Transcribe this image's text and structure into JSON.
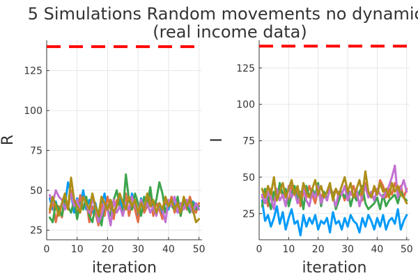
{
  "figure": {
    "title_line1": "5 Simulations Random movements no dynamics",
    "title_line2": "(real income data)"
  },
  "colors": {
    "series": [
      "#009af9",
      "#e26f46",
      "#3da44d",
      "#c271d2",
      "#ac8e18"
    ],
    "reference": "#ff0000"
  },
  "chart_data": [
    {
      "type": "line",
      "xlabel": "iteration",
      "ylabel": "R",
      "xlim": [
        0,
        51
      ],
      "ylim": [
        19,
        144
      ],
      "xticks": [
        0,
        10,
        20,
        30,
        40,
        50
      ],
      "yticks": [
        25,
        50,
        75,
        100,
        125
      ],
      "grid": true,
      "legend": "none",
      "x": [
        1,
        2,
        3,
        4,
        5,
        6,
        7,
        8,
        9,
        10,
        11,
        12,
        13,
        14,
        15,
        16,
        17,
        18,
        19,
        20,
        21,
        22,
        23,
        24,
        25,
        26,
        27,
        28,
        29,
        30,
        31,
        32,
        33,
        34,
        35,
        36,
        37,
        38,
        39,
        40,
        41,
        42,
        43,
        44,
        45,
        46,
        47,
        48,
        49,
        50
      ],
      "reference_line": 140,
      "series": [
        {
          "values": [
            45,
            38,
            43,
            35,
            42,
            40,
            55,
            48,
            36,
            45,
            41,
            50,
            38,
            44,
            36,
            42,
            33,
            40,
            48,
            38,
            44,
            35,
            40,
            46,
            38,
            42,
            36,
            48,
            40,
            34,
            45,
            38,
            43,
            50,
            36,
            42,
            40,
            35,
            44,
            38,
            46,
            40,
            36,
            42,
            39,
            44,
            37,
            43,
            40,
            38
          ]
        },
        {
          "values": [
            36,
            44,
            30,
            40,
            33,
            45,
            38,
            50,
            42,
            35,
            47,
            38,
            44,
            30,
            40,
            36,
            28,
            42,
            34,
            46,
            38,
            32,
            44,
            40,
            36,
            48,
            34,
            42,
            38,
            30,
            44,
            36,
            40,
            46,
            34,
            42,
            38,
            32,
            44,
            40,
            46,
            36,
            42,
            34,
            44,
            38,
            46,
            40,
            36,
            42
          ]
        },
        {
          "values": [
            33,
            30,
            42,
            38,
            34,
            46,
            40,
            36,
            44,
            32,
            42,
            38,
            46,
            34,
            30,
            40,
            36,
            28,
            42,
            38,
            34,
            44,
            50,
            40,
            36,
            60,
            44,
            38,
            48,
            42,
            34,
            46,
            40,
            52,
            38,
            44,
            55,
            48,
            36,
            42,
            40,
            38,
            46,
            34,
            44,
            40,
            36,
            42,
            38,
            40
          ]
        },
        {
          "values": [
            47,
            42,
            50,
            46,
            44,
            38,
            42,
            48,
            40,
            44,
            38,
            46,
            42,
            36,
            44,
            40,
            30,
            34,
            42,
            38,
            28,
            44,
            36,
            40,
            34,
            42,
            38,
            46,
            40,
            36,
            44,
            38,
            42,
            36,
            40,
            34,
            42,
            38,
            30,
            44,
            40,
            46,
            36,
            42,
            38,
            44,
            40,
            36,
            42,
            38
          ]
        },
        {
          "values": [
            38,
            46,
            40,
            34,
            42,
            48,
            38,
            58,
            44,
            40,
            36,
            46,
            42,
            38,
            48,
            40,
            34,
            46,
            42,
            38,
            44,
            36,
            40,
            48,
            42,
            38,
            46,
            40,
            44,
            36,
            42,
            38,
            48,
            40,
            44,
            36,
            42,
            38,
            46,
            40,
            44,
            38,
            42,
            36,
            46,
            40,
            44,
            38,
            30,
            32
          ]
        }
      ]
    },
    {
      "type": "line",
      "xlabel": "iteration",
      "ylabel": "I",
      "xlim": [
        0,
        51
      ],
      "ylim": [
        7,
        144
      ],
      "xticks": [
        0,
        10,
        20,
        30,
        40,
        50
      ],
      "yticks": [
        25,
        50,
        75,
        100,
        125
      ],
      "grid": true,
      "legend": "none",
      "x": [
        1,
        2,
        3,
        4,
        5,
        6,
        7,
        8,
        9,
        10,
        11,
        12,
        13,
        14,
        15,
        16,
        17,
        18,
        19,
        20,
        21,
        22,
        23,
        24,
        25,
        26,
        27,
        28,
        29,
        30,
        31,
        32,
        33,
        34,
        35,
        36,
        37,
        38,
        39,
        40,
        41,
        42,
        43,
        44,
        45,
        46,
        47,
        48,
        49,
        50
      ],
      "reference_line": 140,
      "series": [
        {
          "values": [
            34,
            20,
            24,
            16,
            22,
            30,
            18,
            26,
            14,
            22,
            28,
            18,
            20,
            10,
            24,
            16,
            22,
            18,
            24,
            14,
            20,
            18,
            22,
            12,
            26,
            18,
            20,
            14,
            22,
            16,
            24,
            20,
            18,
            12,
            22,
            16,
            24,
            20,
            14,
            22,
            16,
            24,
            14,
            20,
            22,
            18,
            28,
            14,
            20,
            24
          ]
        },
        {
          "values": [
            36,
            40,
            30,
            42,
            34,
            38,
            44,
            36,
            40,
            32,
            44,
            38,
            42,
            30,
            40,
            36,
            44,
            38,
            32,
            42,
            36,
            40,
            34,
            44,
            38,
            42,
            36,
            40,
            34,
            42,
            38,
            44,
            36,
            40,
            34,
            46,
            40,
            36,
            42,
            38,
            48,
            44,
            36,
            42,
            38,
            46,
            40,
            44,
            36,
            42
          ]
        },
        {
          "values": [
            30,
            42,
            36,
            28,
            40,
            34,
            46,
            38,
            42,
            30,
            38,
            44,
            34,
            40,
            28,
            44,
            36,
            42,
            38,
            46,
            30,
            40,
            34,
            44,
            38,
            28,
            34,
            40,
            36,
            42,
            30,
            38,
            34,
            40,
            44,
            32,
            28,
            30,
            32,
            36,
            28,
            38,
            30,
            34,
            36,
            38,
            32,
            40,
            36,
            34
          ]
        },
        {
          "values": [
            38,
            32,
            40,
            36,
            28,
            42,
            34,
            38,
            30,
            44,
            36,
            40,
            32,
            38,
            42,
            34,
            30,
            40,
            36,
            44,
            32,
            38,
            34,
            42,
            36,
            30,
            40,
            38,
            44,
            34,
            40,
            36,
            42,
            30,
            38,
            44,
            36,
            40,
            34,
            42,
            38,
            36,
            40,
            44,
            50,
            58,
            36,
            42,
            48,
            40
          ]
        },
        {
          "values": [
            42,
            36,
            44,
            38,
            50,
            34,
            40,
            46,
            36,
            42,
            48,
            38,
            44,
            34,
            46,
            40,
            36,
            42,
            48,
            38,
            44,
            36,
            40,
            46,
            34,
            42,
            38,
            44,
            50,
            40,
            46,
            36,
            42,
            48,
            38,
            54,
            40,
            36,
            44,
            38,
            46,
            40,
            42,
            36,
            46,
            40,
            44,
            38,
            36,
            32
          ]
        }
      ]
    }
  ]
}
